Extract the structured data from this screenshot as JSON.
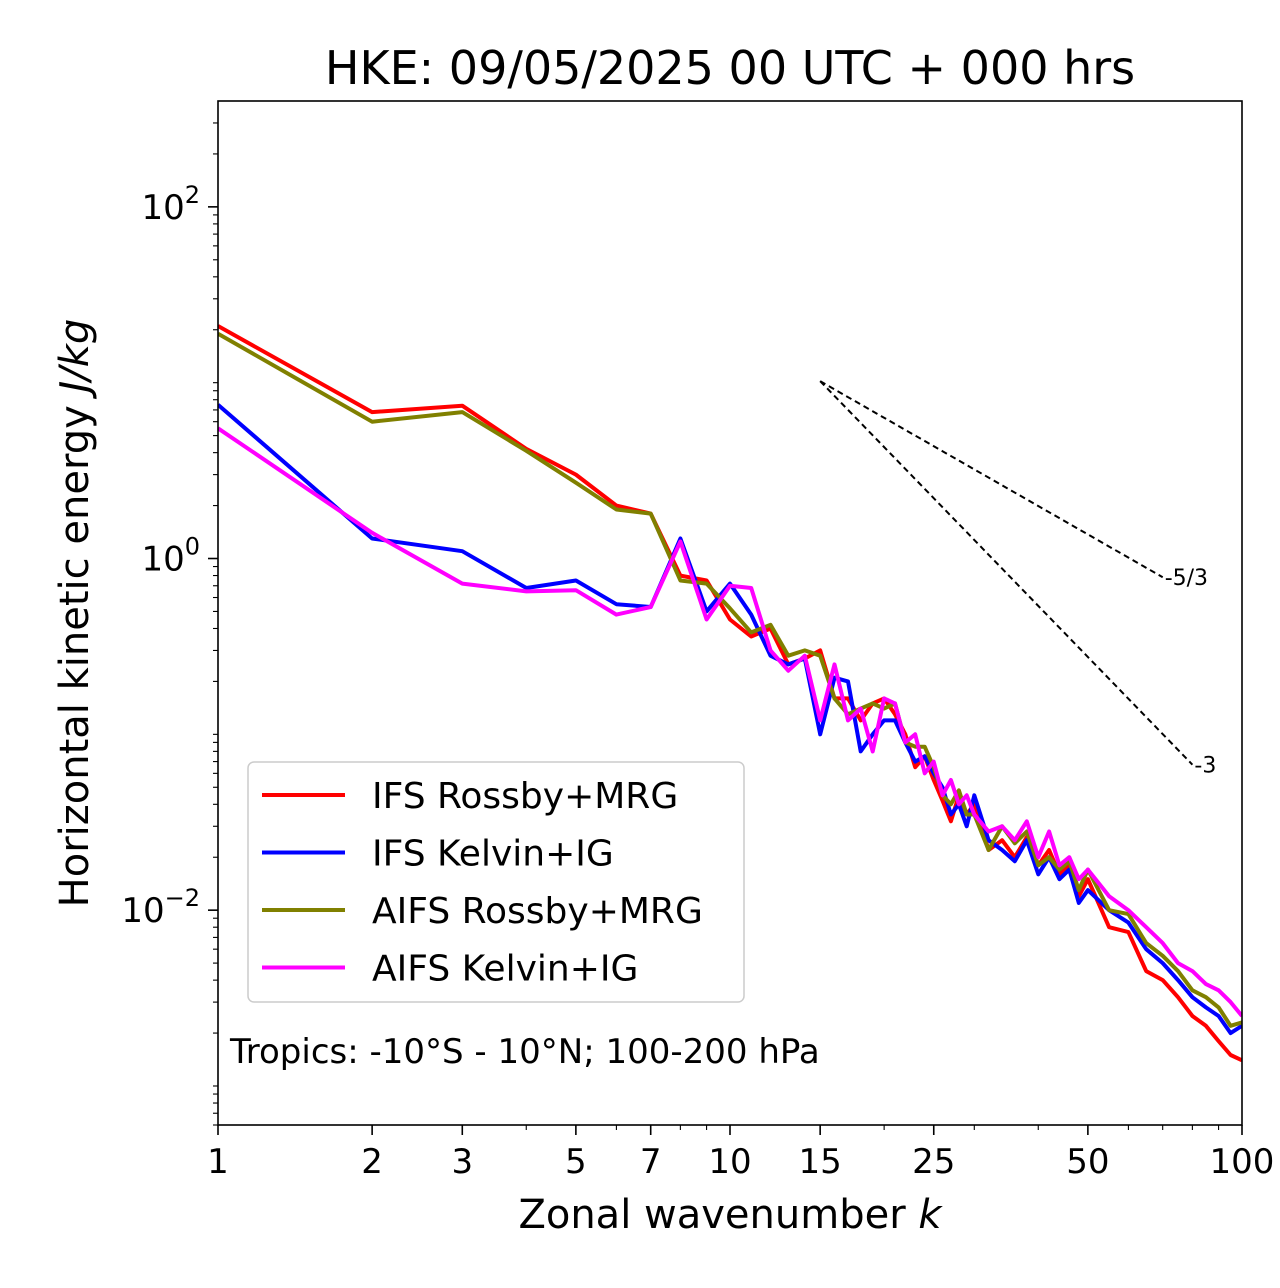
{
  "chart_data": {
    "type": "line",
    "title": "HKE: 09/05/2025 00 UTC + 000 hrs",
    "xlabel": "Zonal wavenumber",
    "xlabel_symbol": "k",
    "ylabel": "Horizontal kinetic energy",
    "ylabel_units": "J/kg",
    "xscale": "log",
    "yscale": "log",
    "xlim": [
      1,
      100
    ],
    "ylim": [
      0.0006,
      400
    ],
    "xticks": [
      1,
      2,
      3,
      5,
      7,
      10,
      15,
      25,
      50,
      100
    ],
    "xtick_labels": [
      "1",
      "2",
      "3",
      "5",
      "7",
      "10",
      "15",
      "25",
      "50",
      "100"
    ],
    "yticks": [
      {
        "value": 100,
        "base": "10",
        "exp": "2"
      },
      {
        "value": 1,
        "base": "10",
        "exp": "0"
      },
      {
        "value": 0.01,
        "base": "10",
        "exp": "−2"
      }
    ],
    "grid": false,
    "legend_position": "lower-left",
    "annotation": "Tropics: -10°S - 10°N; 100-200 hPa",
    "reference_slopes": [
      {
        "label": "-5/3",
        "slope": -1.6667,
        "x_start": 15,
        "x_end": 70,
        "y_start": 10.2
      },
      {
        "label": "-3",
        "slope": -3,
        "x_start": 15,
        "x_end": 80,
        "y_start": 10.2
      }
    ],
    "series": [
      {
        "name": "IFS Rossby+MRG",
        "color": "#ff0000",
        "x": [
          1,
          2,
          3,
          4,
          5,
          6,
          7,
          8,
          9,
          10,
          11,
          12,
          13,
          14,
          15,
          16,
          17,
          18,
          19,
          20,
          21,
          22,
          23,
          24,
          25,
          26,
          27,
          28,
          29,
          30,
          32,
          34,
          36,
          38,
          40,
          42,
          44,
          46,
          48,
          50,
          55,
          60,
          65,
          70,
          75,
          80,
          85,
          90,
          95,
          100
        ],
        "y": [
          21,
          6.8,
          7.4,
          4.2,
          3.0,
          2.0,
          1.8,
          0.8,
          0.75,
          0.45,
          0.36,
          0.4,
          0.25,
          0.27,
          0.3,
          0.16,
          0.16,
          0.12,
          0.15,
          0.16,
          0.13,
          0.1,
          0.065,
          0.075,
          0.055,
          0.042,
          0.032,
          0.045,
          0.035,
          0.04,
          0.022,
          0.025,
          0.02,
          0.026,
          0.018,
          0.022,
          0.016,
          0.018,
          0.012,
          0.015,
          0.008,
          0.0075,
          0.0045,
          0.004,
          0.0032,
          0.0025,
          0.0022,
          0.0018,
          0.0015,
          0.0014
        ]
      },
      {
        "name": "IFS Kelvin+IG",
        "color": "#0000ff",
        "x": [
          1,
          2,
          3,
          4,
          5,
          6,
          7,
          8,
          9,
          10,
          11,
          12,
          13,
          14,
          15,
          16,
          17,
          18,
          19,
          20,
          21,
          22,
          23,
          24,
          25,
          26,
          27,
          28,
          29,
          30,
          32,
          34,
          36,
          38,
          40,
          42,
          44,
          46,
          48,
          50,
          55,
          60,
          65,
          70,
          75,
          80,
          85,
          90,
          95,
          100
        ],
        "y": [
          7.5,
          1.3,
          1.1,
          0.68,
          0.75,
          0.55,
          0.53,
          1.3,
          0.5,
          0.72,
          0.48,
          0.28,
          0.25,
          0.27,
          0.1,
          0.21,
          0.2,
          0.08,
          0.1,
          0.12,
          0.12,
          0.09,
          0.07,
          0.075,
          0.06,
          0.05,
          0.035,
          0.04,
          0.03,
          0.045,
          0.025,
          0.022,
          0.019,
          0.025,
          0.016,
          0.02,
          0.015,
          0.017,
          0.011,
          0.013,
          0.01,
          0.0085,
          0.006,
          0.005,
          0.004,
          0.0032,
          0.0028,
          0.0025,
          0.002,
          0.0022
        ]
      },
      {
        "name": "AIFS Rossby+MRG",
        "color": "#808000",
        "x": [
          1,
          2,
          3,
          4,
          5,
          6,
          7,
          8,
          9,
          10,
          11,
          12,
          13,
          14,
          15,
          16,
          17,
          18,
          19,
          20,
          21,
          22,
          23,
          24,
          25,
          26,
          27,
          28,
          29,
          30,
          32,
          34,
          36,
          38,
          40,
          42,
          44,
          46,
          48,
          50,
          55,
          60,
          65,
          70,
          75,
          80,
          85,
          90,
          95,
          100
        ],
        "y": [
          19,
          6.0,
          6.8,
          4.1,
          2.7,
          1.9,
          1.8,
          0.75,
          0.72,
          0.52,
          0.38,
          0.42,
          0.28,
          0.3,
          0.28,
          0.16,
          0.13,
          0.14,
          0.15,
          0.14,
          0.15,
          0.09,
          0.085,
          0.085,
          0.065,
          0.045,
          0.04,
          0.048,
          0.035,
          0.035,
          0.022,
          0.03,
          0.024,
          0.028,
          0.018,
          0.02,
          0.017,
          0.019,
          0.013,
          0.017,
          0.01,
          0.0095,
          0.0065,
          0.0055,
          0.0045,
          0.0035,
          0.0032,
          0.0028,
          0.0022,
          0.0023
        ]
      },
      {
        "name": "AIFS Kelvin+IG",
        "color": "#ff00ff",
        "x": [
          1,
          2,
          3,
          4,
          5,
          6,
          7,
          8,
          9,
          10,
          11,
          12,
          13,
          14,
          15,
          16,
          17,
          18,
          19,
          20,
          21,
          22,
          23,
          24,
          25,
          26,
          27,
          28,
          29,
          30,
          32,
          34,
          36,
          38,
          40,
          42,
          44,
          46,
          48,
          50,
          55,
          60,
          65,
          70,
          75,
          80,
          85,
          90,
          95,
          100
        ],
        "y": [
          5.5,
          1.4,
          0.72,
          0.65,
          0.66,
          0.48,
          0.53,
          1.25,
          0.45,
          0.7,
          0.68,
          0.3,
          0.23,
          0.28,
          0.12,
          0.25,
          0.12,
          0.14,
          0.08,
          0.16,
          0.15,
          0.09,
          0.1,
          0.06,
          0.07,
          0.045,
          0.055,
          0.04,
          0.045,
          0.035,
          0.028,
          0.03,
          0.025,
          0.032,
          0.02,
          0.028,
          0.018,
          0.02,
          0.015,
          0.017,
          0.012,
          0.01,
          0.008,
          0.0065,
          0.005,
          0.0045,
          0.0038,
          0.0035,
          0.003,
          0.0025
        ]
      }
    ]
  }
}
